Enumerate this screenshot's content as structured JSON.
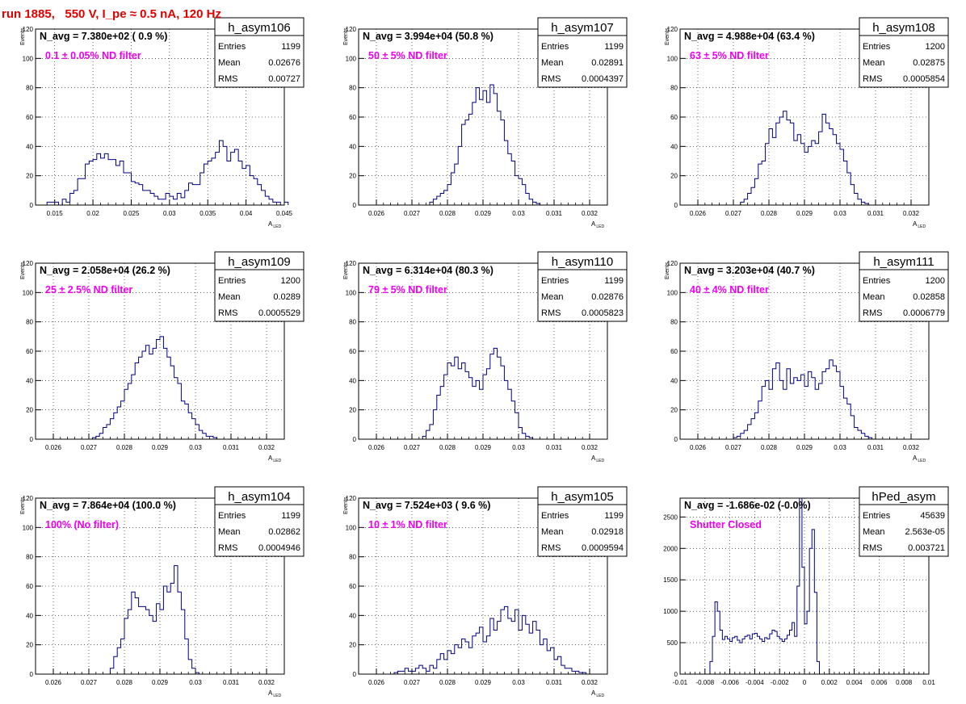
{
  "run_title": "run 1885,   550 V, I_pe ≈ 0.5 nA, 120 Hz",
  "colors": {
    "histogram": "#000080",
    "annotation": "#ee00ee",
    "title": "#e00000",
    "axis": "#000000",
    "grid": "#000000"
  },
  "stats_labels": {
    "entries": "Entries",
    "mean": "Mean",
    "rms": "RMS"
  },
  "chart_data": [
    {
      "type": "histogram",
      "name": "h_asym106",
      "navg": "N_avg = 7.380e+02 ( 0.9 %)",
      "filter": "0.1 ± 0.05% ND filter",
      "entries": "1199",
      "mean": "0.02676",
      "rms": "0.00727",
      "xlabel": "A",
      "xlabel_sub": "LED",
      "ylabel": "Events",
      "xlim": [
        0.0125,
        0.045
      ],
      "ylim": [
        0,
        120
      ],
      "xticks": [
        0.015,
        0.02,
        0.025,
        0.03,
        0.035,
        0.04,
        0.045
      ],
      "xtick_labels": [
        "0.015",
        "0.02",
        "0.025",
        "0.03",
        "0.035",
        "0.04",
        "0.045"
      ],
      "yticks": [
        0,
        20,
        40,
        60,
        80,
        100,
        120
      ],
      "ytick_labels": [
        "0",
        "20",
        "40",
        "60",
        "80",
        "100",
        "120"
      ],
      "bin_start": 0.014,
      "bin_width": 0.0005,
      "values": [
        2,
        2,
        2,
        0,
        4,
        2,
        8,
        10,
        18,
        18,
        28,
        30,
        31,
        35,
        32,
        35,
        31,
        31,
        27,
        30,
        22,
        22,
        16,
        15,
        14,
        10,
        10,
        8,
        6,
        4,
        4,
        8,
        6,
        4,
        8,
        5,
        10,
        15,
        14,
        14,
        22,
        28,
        30,
        32,
        36,
        44,
        40,
        30,
        36,
        38,
        30,
        25,
        27,
        20,
        18,
        14,
        10,
        6,
        4,
        2,
        2,
        0,
        2
      ]
    },
    {
      "type": "histogram",
      "name": "h_asym107",
      "navg": "N_avg = 3.994e+04 (50.8 %)",
      "filter": "50 ± 5% ND filter",
      "entries": "1199",
      "mean": "0.02891",
      "rms": "0.0004397",
      "xlabel": "A",
      "xlabel_sub": "LED",
      "ylabel": "Events",
      "xlim": [
        0.0255,
        0.0325
      ],
      "ylim": [
        0,
        120
      ],
      "xticks": [
        0.026,
        0.027,
        0.028,
        0.029,
        0.03,
        0.031,
        0.032
      ],
      "xtick_labels": [
        "0.026",
        "0.027",
        "0.028",
        "0.029",
        "0.03",
        "0.031",
        "0.032"
      ],
      "yticks": [
        0,
        20,
        40,
        60,
        80,
        100,
        120
      ],
      "ytick_labels": [
        "0",
        "20",
        "40",
        "60",
        "80",
        "100",
        "120"
      ],
      "bin_start": 0.0275,
      "bin_width": 0.0001,
      "values": [
        2,
        4,
        6,
        8,
        10,
        14,
        22,
        28,
        40,
        55,
        58,
        62,
        70,
        80,
        72,
        78,
        70,
        82,
        76,
        64,
        58,
        44,
        35,
        30,
        20,
        18,
        14,
        8,
        4,
        2,
        1,
        0
      ]
    },
    {
      "type": "histogram",
      "name": "h_asym108",
      "navg": "N_avg = 4.988e+04 (63.4 %)",
      "filter": "63 ± 5% ND filter",
      "entries": "1200",
      "mean": "0.02875",
      "rms": "0.0005854",
      "xlabel": "A",
      "xlabel_sub": "LED",
      "ylabel": "Events",
      "xlim": [
        0.0255,
        0.0325
      ],
      "ylim": [
        0,
        120
      ],
      "xticks": [
        0.026,
        0.027,
        0.028,
        0.029,
        0.03,
        0.031,
        0.032
      ],
      "xtick_labels": [
        "0.026",
        "0.027",
        "0.028",
        "0.029",
        "0.03",
        "0.031",
        "0.032"
      ],
      "yticks": [
        0,
        20,
        40,
        60,
        80,
        100,
        120
      ],
      "ytick_labels": [
        "0",
        "20",
        "40",
        "60",
        "80",
        "100",
        "120"
      ],
      "bin_start": 0.0272,
      "bin_width": 0.0001,
      "values": [
        2,
        4,
        8,
        12,
        18,
        28,
        30,
        42,
        52,
        46,
        56,
        60,
        64,
        58,
        56,
        44,
        48,
        42,
        36,
        40,
        44,
        42,
        50,
        62,
        56,
        52,
        48,
        42,
        38,
        30,
        22,
        14,
        8,
        4,
        2,
        1
      ]
    },
    {
      "type": "histogram",
      "name": "h_asym109",
      "navg": "N_avg = 2.058e+04 (26.2 %)",
      "filter": "25 ± 2.5% ND filter",
      "entries": "1200",
      "mean": "0.0289",
      "rms": "0.0005529",
      "xlabel": "A",
      "xlabel_sub": "LED",
      "ylabel": "Events",
      "xlim": [
        0.0255,
        0.0325
      ],
      "ylim": [
        0,
        120
      ],
      "xticks": [
        0.026,
        0.027,
        0.028,
        0.029,
        0.03,
        0.031,
        0.032
      ],
      "xtick_labels": [
        "0.026",
        "0.027",
        "0.028",
        "0.029",
        "0.03",
        "0.031",
        "0.032"
      ],
      "yticks": [
        0,
        20,
        40,
        60,
        80,
        100,
        120
      ],
      "ytick_labels": [
        "0",
        "20",
        "40",
        "60",
        "80",
        "100",
        "120"
      ],
      "bin_start": 0.0271,
      "bin_width": 0.0001,
      "values": [
        1,
        2,
        4,
        8,
        10,
        14,
        18,
        22,
        26,
        34,
        38,
        44,
        52,
        56,
        60,
        64,
        58,
        62,
        68,
        70,
        62,
        56,
        50,
        42,
        38,
        26,
        24,
        18,
        14,
        10,
        6,
        4,
        2,
        2,
        1
      ]
    },
    {
      "type": "histogram",
      "name": "h_asym110",
      "navg": "N_avg = 6.314e+04 (80.3 %)",
      "filter": "79 ± 5% ND filter",
      "entries": "1199",
      "mean": "0.02876",
      "rms": "0.0005823",
      "xlabel": "A",
      "xlabel_sub": "LED",
      "ylabel": "Events",
      "xlim": [
        0.0255,
        0.0325
      ],
      "ylim": [
        0,
        120
      ],
      "xticks": [
        0.026,
        0.027,
        0.028,
        0.029,
        0.03,
        0.031,
        0.032
      ],
      "xtick_labels": [
        "0.026",
        "0.027",
        "0.028",
        "0.029",
        "0.03",
        "0.031",
        "0.032"
      ],
      "yticks": [
        0,
        20,
        40,
        60,
        80,
        100,
        120
      ],
      "ytick_labels": [
        "0",
        "20",
        "40",
        "60",
        "80",
        "100",
        "120"
      ],
      "bin_start": 0.0273,
      "bin_width": 0.0001,
      "values": [
        2,
        6,
        10,
        20,
        30,
        36,
        44,
        52,
        50,
        56,
        48,
        52,
        46,
        42,
        36,
        40,
        34,
        44,
        48,
        58,
        62,
        56,
        50,
        40,
        34,
        26,
        18,
        8,
        4,
        2,
        1
      ]
    },
    {
      "type": "histogram",
      "name": "h_asym111",
      "navg": "N_avg = 3.203e+04 (40.7 %)",
      "filter": "40 ± 4% ND filter",
      "entries": "1200",
      "mean": "0.02858",
      "rms": "0.0006779",
      "xlabel": "A",
      "xlabel_sub": "LED",
      "ylabel": "Events",
      "xlim": [
        0.0255,
        0.0325
      ],
      "ylim": [
        0,
        120
      ],
      "xticks": [
        0.026,
        0.027,
        0.028,
        0.029,
        0.03,
        0.031,
        0.032
      ],
      "xtick_labels": [
        "0.026",
        "0.027",
        "0.028",
        "0.029",
        "0.03",
        "0.031",
        "0.032"
      ],
      "yticks": [
        0,
        20,
        40,
        60,
        80,
        100,
        120
      ],
      "ytick_labels": [
        "0",
        "20",
        "40",
        "60",
        "80",
        "100",
        "120"
      ],
      "bin_start": 0.027,
      "bin_width": 0.0001,
      "values": [
        1,
        2,
        4,
        6,
        10,
        14,
        18,
        26,
        36,
        40,
        34,
        48,
        52,
        40,
        34,
        48,
        38,
        42,
        40,
        44,
        36,
        46,
        42,
        34,
        38,
        46,
        48,
        54,
        50,
        46,
        36,
        28,
        24,
        16,
        8,
        6,
        4,
        2,
        1
      ]
    },
    {
      "type": "histogram",
      "name": "h_asym104",
      "navg": "N_avg = 7.864e+04 (100.0 %)",
      "filter": "100% (No filter)",
      "entries": "1199",
      "mean": "0.02862",
      "rms": "0.0004946",
      "xlabel": "A",
      "xlabel_sub": "LED",
      "ylabel": "Events",
      "xlim": [
        0.0255,
        0.0325
      ],
      "ylim": [
        0,
        120
      ],
      "xticks": [
        0.026,
        0.027,
        0.028,
        0.029,
        0.03,
        0.031,
        0.032
      ],
      "xtick_labels": [
        "0.026",
        "0.027",
        "0.028",
        "0.029",
        "0.03",
        "0.031",
        "0.032"
      ],
      "yticks": [
        0,
        20,
        40,
        60,
        80,
        100,
        120
      ],
      "ytick_labels": [
        "0",
        "20",
        "40",
        "60",
        "80",
        "100",
        "120"
      ],
      "bin_start": 0.0276,
      "bin_width": 0.0001,
      "values": [
        4,
        12,
        18,
        24,
        38,
        44,
        56,
        52,
        46,
        46,
        44,
        40,
        36,
        48,
        44,
        60,
        56,
        62,
        74,
        56,
        44,
        24,
        10,
        4,
        1
      ]
    },
    {
      "type": "histogram",
      "name": "h_asym105",
      "navg": "N_avg = 7.524e+03 ( 9.6 %)",
      "filter": "10 ± 1% ND filter",
      "entries": "1199",
      "mean": "0.02918",
      "rms": "0.0009594",
      "xlabel": "A",
      "xlabel_sub": "LED",
      "ylabel": "Events",
      "xlim": [
        0.0255,
        0.0325
      ],
      "ylim": [
        0,
        120
      ],
      "xticks": [
        0.026,
        0.027,
        0.028,
        0.029,
        0.03,
        0.031,
        0.032
      ],
      "xtick_labels": [
        "0.026",
        "0.027",
        "0.028",
        "0.029",
        "0.03",
        "0.031",
        "0.032"
      ],
      "yticks": [
        0,
        20,
        40,
        60,
        80,
        100,
        120
      ],
      "ytick_labels": [
        "0",
        "20",
        "40",
        "60",
        "80",
        "100",
        "120"
      ],
      "bin_start": 0.0265,
      "bin_width": 0.0001,
      "values": [
        1,
        2,
        2,
        4,
        2,
        2,
        4,
        6,
        4,
        2,
        6,
        4,
        10,
        14,
        10,
        16,
        14,
        20,
        18,
        24,
        22,
        18,
        26,
        28,
        32,
        22,
        26,
        38,
        30,
        36,
        44,
        46,
        38,
        36,
        44,
        30,
        40,
        34,
        28,
        36,
        30,
        20,
        24,
        16,
        18,
        10,
        12,
        6,
        4,
        4,
        2,
        2,
        1,
        1
      ]
    },
    {
      "type": "histogram",
      "name": "hPed_asym",
      "navg": "N_avg = -1.686e-02 (-0.0%)",
      "filter": "Shutter Closed",
      "entries": "45639",
      "mean": "2.563e-05",
      "rms": "0.003721",
      "xlabel": "",
      "xlabel_sub": "",
      "ylabel": "",
      "xlim": [
        -0.01,
        0.01
      ],
      "ylim": [
        0,
        2800
      ],
      "xticks": [
        -0.01,
        -0.008,
        -0.006,
        -0.004,
        -0.002,
        0,
        0.002,
        0.004,
        0.006,
        0.008,
        0.01
      ],
      "xtick_labels": [
        "-0.01",
        "-0.008",
        "-0.006",
        "-0.004",
        "-0.002",
        "0",
        "0.002",
        "0.004",
        "0.006",
        "0.008",
        "0.01"
      ],
      "yticks": [
        0,
        500,
        1000,
        1500,
        2000,
        2500
      ],
      "ytick_labels": [
        "0",
        "500",
        "1000",
        "1500",
        "2000",
        "2500"
      ],
      "bin_start": -0.0076,
      "bin_width": 0.0002,
      "values": [
        200,
        600,
        1150,
        1000,
        700,
        550,
        600,
        560,
        520,
        580,
        600,
        540,
        500,
        560,
        600,
        620,
        560,
        640,
        650,
        600,
        560,
        520,
        580,
        560,
        640,
        700,
        680,
        600,
        560,
        520,
        560,
        620,
        700,
        820,
        600,
        1400,
        2800,
        1700,
        800,
        1000,
        2000,
        2300,
        1300,
        200,
        0,
        0
      ]
    }
  ]
}
